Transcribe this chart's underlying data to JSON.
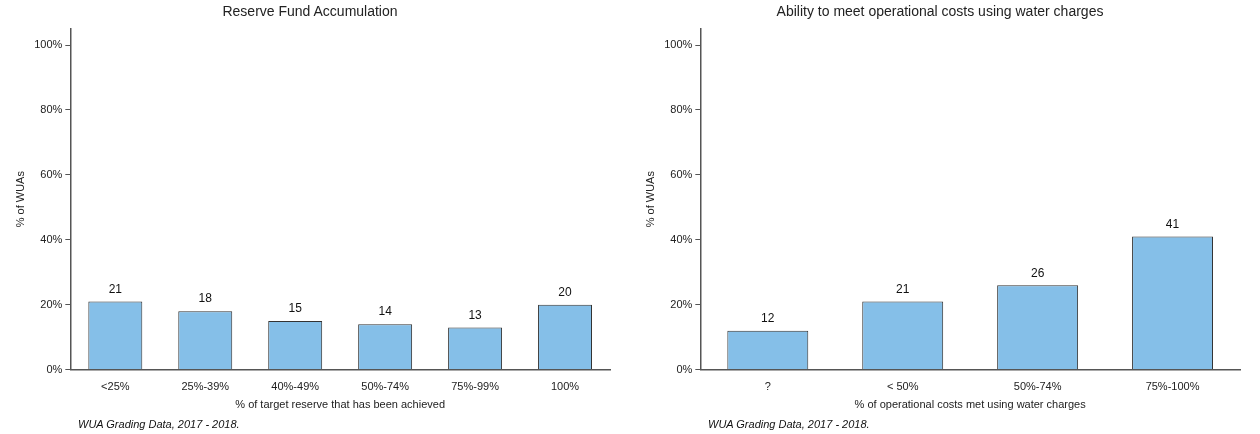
{
  "chart_data": [
    {
      "type": "bar",
      "title": "Reserve Fund Accumulation",
      "xlabel": "% of target reserve that has been achieved",
      "ylabel": "% of WUAs",
      "categories": [
        "<25%",
        "25%-39%",
        "40%-49%",
        "50%-74%",
        "75%-99%",
        "100%"
      ],
      "values": [
        21,
        18,
        15,
        14,
        13,
        20
      ],
      "color": "#85bfe8",
      "data_labels": true,
      "ylim": [
        0,
        105
      ],
      "yticks": [
        {
          "value": 0,
          "label": "0%"
        },
        {
          "value": 20,
          "label": "20%"
        },
        {
          "value": 40,
          "label": "40%"
        },
        {
          "value": 60,
          "label": "60%"
        },
        {
          "value": 80,
          "label": "80%"
        },
        {
          "value": 100,
          "label": "100%"
        }
      ],
      "grid": false,
      "legend": false,
      "annotations": [
        "WUA Grading Data, 2017 - 2018."
      ]
    },
    {
      "type": "bar",
      "title": "Ability to meet operational costs using water charges",
      "xlabel": "% of operational costs met using water charges",
      "ylabel": "% of WUAs",
      "categories": [
        "?",
        "< 50%",
        "50%-74%",
        "75%-100%"
      ],
      "values": [
        12,
        21,
        26,
        41
      ],
      "color": "#85bfe8",
      "data_labels": true,
      "ylim": [
        0,
        105
      ],
      "yticks": [
        {
          "value": 0,
          "label": "0%"
        },
        {
          "value": 20,
          "label": "20%"
        },
        {
          "value": 40,
          "label": "40%"
        },
        {
          "value": 60,
          "label": "60%"
        },
        {
          "value": 80,
          "label": "80%"
        },
        {
          "value": 100,
          "label": "100%"
        }
      ],
      "grid": false,
      "legend": false,
      "annotations": [
        "WUA Grading Data, 2017 - 2018."
      ]
    }
  ]
}
